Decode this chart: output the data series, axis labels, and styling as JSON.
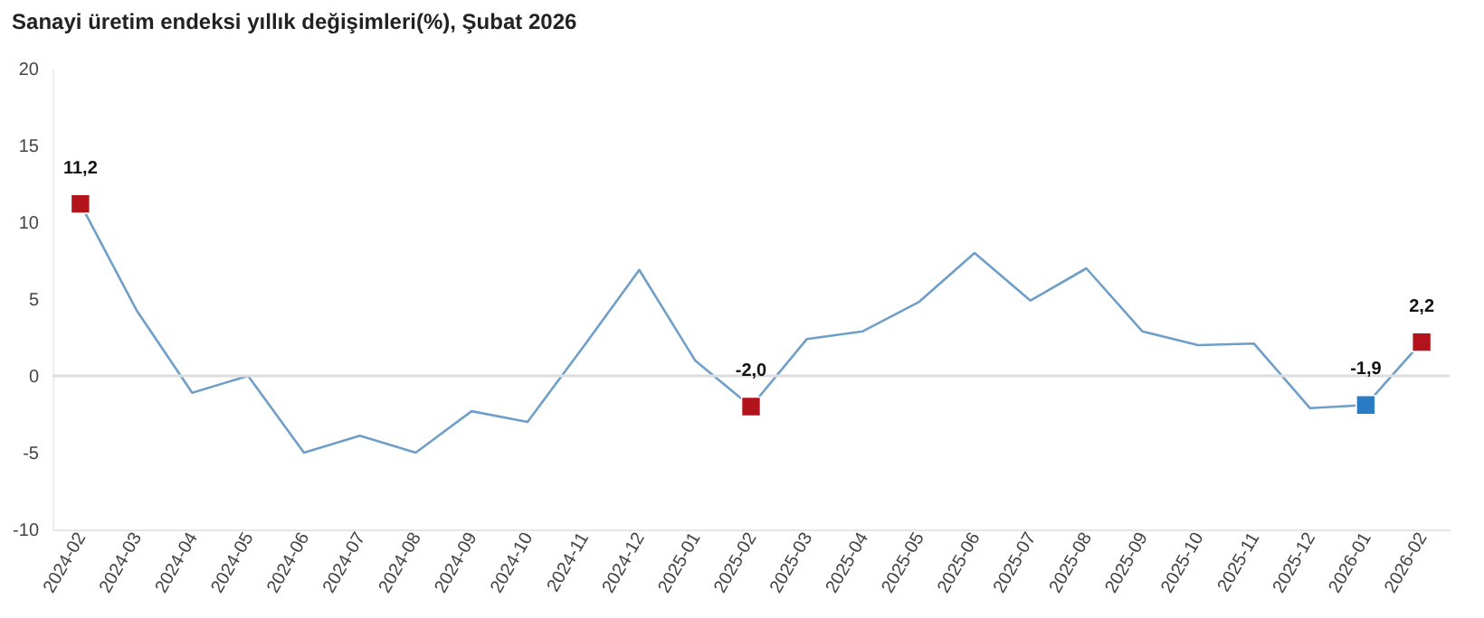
{
  "chart_data": {
    "type": "line",
    "title": "Sanayi üretim endeksi yıllık değişimleri(%), Şubat 2026",
    "categories": [
      "2024-02",
      "2024-03",
      "2024-04",
      "2024-05",
      "2024-06",
      "2024-07",
      "2024-08",
      "2024-09",
      "2024-10",
      "2024-11",
      "2024-12",
      "2025-01",
      "2025-02",
      "2025-03",
      "2025-04",
      "2025-05",
      "2025-06",
      "2025-07",
      "2025-08",
      "2025-09",
      "2025-10",
      "2025-11",
      "2025-12",
      "2026-01",
      "2026-02"
    ],
    "series": [
      {
        "type": "line",
        "color": "#6f9fc8",
        "marker": "none",
        "values": [
          11.2,
          4.3,
          -1.1,
          0.0,
          -5.0,
          -3.9,
          -5.0,
          -2.3,
          -3.0,
          1.9,
          6.9,
          1.0,
          -2.0,
          2.4,
          2.9,
          4.8,
          8.0,
          4.9,
          7.0,
          2.9,
          2.0,
          2.1,
          -2.1,
          -1.9,
          2.2
        ]
      },
      {
        "type": "scatter",
        "marker": "square",
        "colors": [
          "#b3131b",
          null,
          null,
          null,
          null,
          null,
          null,
          null,
          null,
          null,
          null,
          null,
          "#b3131b",
          null,
          null,
          null,
          null,
          null,
          null,
          null,
          null,
          null,
          null,
          "#2b7bc4",
          "#b3131b"
        ],
        "values": [
          11.2,
          null,
          null,
          null,
          null,
          null,
          null,
          null,
          null,
          null,
          null,
          null,
          -2.0,
          null,
          null,
          null,
          null,
          null,
          null,
          null,
          null,
          null,
          null,
          -1.9,
          2.2
        ],
        "value_labels": [
          "11,2",
          null,
          null,
          null,
          null,
          null,
          null,
          null,
          null,
          null,
          null,
          null,
          "-2,0",
          null,
          null,
          null,
          null,
          null,
          null,
          null,
          null,
          null,
          null,
          "-1,9",
          "2,2"
        ]
      }
    ],
    "ylim": [
      -10,
      20
    ],
    "yticks": [
      -10,
      -5,
      0,
      5,
      10,
      15,
      20
    ],
    "ref_lines": [
      {
        "axis": "y",
        "value": 0,
        "color": "#dddddd"
      }
    ],
    "grid": false
  }
}
